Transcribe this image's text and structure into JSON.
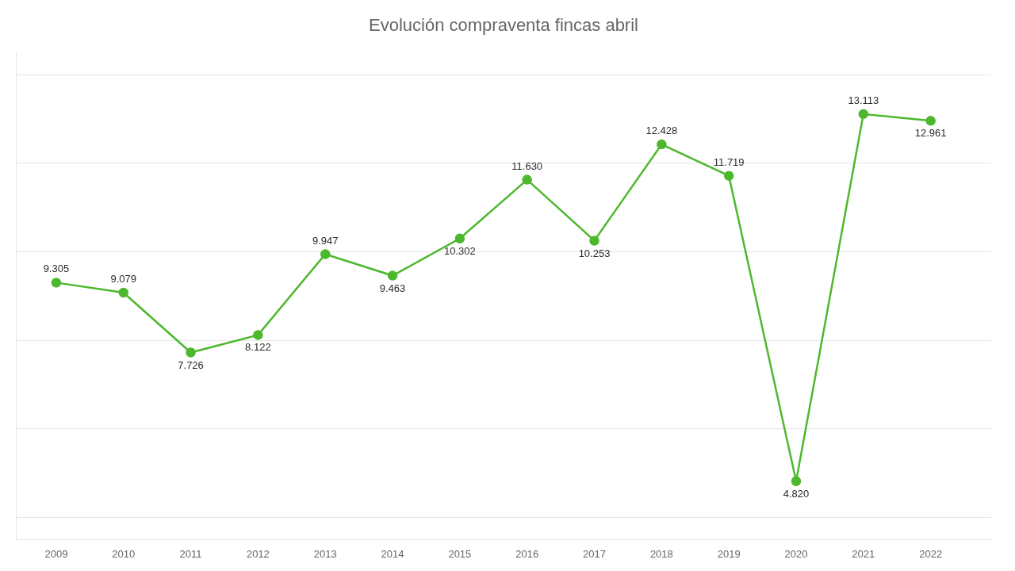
{
  "chart_data": {
    "type": "line",
    "title": "Evolución compraventa fincas abril",
    "x": [
      2009,
      2010,
      2011,
      2012,
      2013,
      2014,
      2015,
      2016,
      2017,
      2018,
      2019,
      2020,
      2021,
      2022
    ],
    "values": [
      9305,
      9079,
      7726,
      8122,
      9947,
      9463,
      10302,
      11630,
      10253,
      12428,
      11719,
      4820,
      13113,
      12961
    ],
    "value_labels": [
      "9.305",
      "9.079",
      "7.726",
      "8.122",
      "9.947",
      "9.463",
      "10.302",
      "11.630",
      "10.253",
      "12.428",
      "11.719",
      "4.820",
      "13.113",
      "12.961"
    ],
    "color": "#4db82e",
    "marker": "circle",
    "xlim": [
      2008.4,
      2022.9
    ],
    "xticks": [
      2009,
      2010,
      2011,
      2012,
      2013,
      2014,
      2015,
      2016,
      2017,
      2018,
      2019,
      2020,
      2021,
      2022
    ],
    "ylim": [
      3500,
      14500
    ],
    "yticks": [
      4000,
      6000,
      8000,
      10000,
      12000,
      14000
    ],
    "grid": true,
    "data_labels": true,
    "tick_labels": "x"
  }
}
